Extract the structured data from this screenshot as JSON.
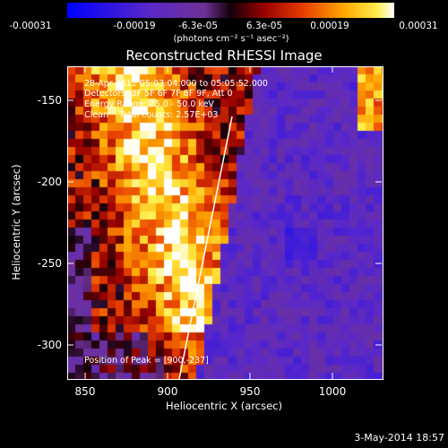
{
  "colorbar": {
    "ticks": [
      "-0.00031",
      "-0.00019",
      "-6.3e-05",
      "6.3e-05",
      "0.00019",
      "0.00031"
    ],
    "unit": "(photons cm⁻² s⁻¹ asec⁻²)",
    "range": [
      -0.00031,
      0.00031
    ]
  },
  "plot": {
    "title": "Reconstructed RHESSI Image",
    "xlabel": "Heliocentric X (arcsec)",
    "ylabel": "Heliocentric Y (arcsec)",
    "xticks": [
      "850",
      "900",
      "950",
      "1000"
    ],
    "yticks": [
      "-150",
      "-200",
      "-250",
      "-300"
    ],
    "xlim": [
      840,
      1030
    ],
    "ylim": [
      -322,
      -135
    ]
  },
  "annotations": {
    "time_range": "28-Apr-2012 05:03:04.000 to 05:05:52.000",
    "detectors": "Detectors: 3F 5F 6F 7F 8F 9F, Att 0",
    "energy": "Energy Range: 25.0 - 50.0 keV",
    "method": "Clean    Total counts: 2.57E+03",
    "peak": "Position of Peak = [900,-237]"
  },
  "footer": {
    "date": "3-May-2014 18:57"
  },
  "colors": {
    "limb": "#ffffff",
    "frame": "#ffffff",
    "background": "#000000"
  }
}
